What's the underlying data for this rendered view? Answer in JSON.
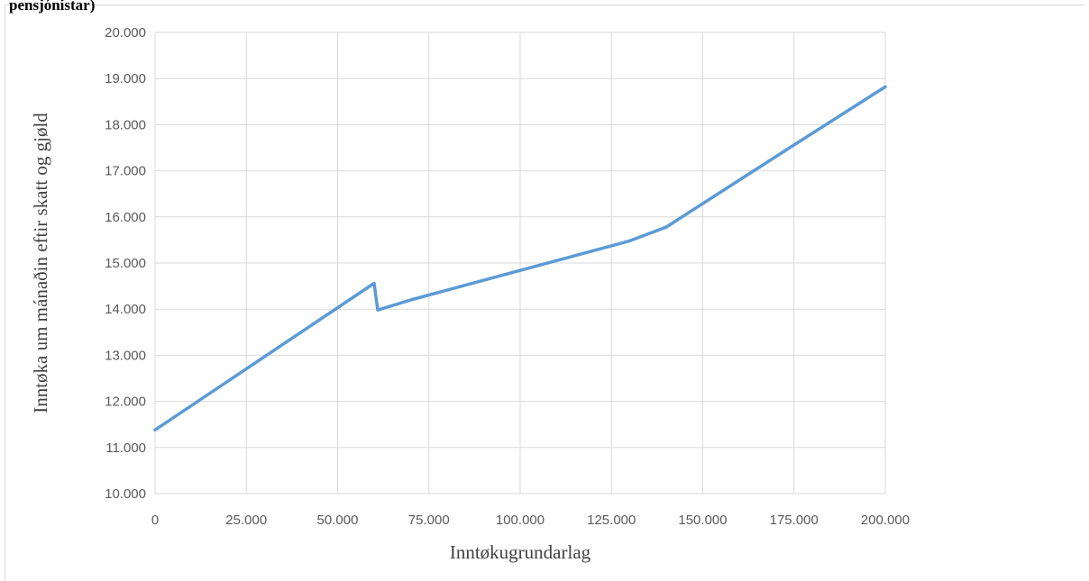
{
  "header": {
    "cut_title": "pensjónistar)"
  },
  "chart_data": {
    "type": "line",
    "title": "",
    "xlabel": "Inntøkugrundarlag",
    "ylabel": "Inntøka um mánaðin eftir skatt og gjøld",
    "xlim": [
      0,
      200000
    ],
    "ylim": [
      10000,
      20000
    ],
    "grid": true,
    "legend": "none",
    "x_ticks": [
      "0",
      "25.000",
      "50.000",
      "75.000",
      "100.000",
      "125.000",
      "150.000",
      "175.000",
      "200.000"
    ],
    "y_ticks": [
      "10.000",
      "11.000",
      "12.000",
      "13.000",
      "14.000",
      "15.000",
      "16.000",
      "17.000",
      "18.000",
      "19.000",
      "20.000"
    ],
    "series": [
      {
        "color": "#5b9bd5",
        "x": [
          0,
          60000,
          61000,
          70000,
          100000,
          130000,
          140000,
          175000,
          200000
        ],
        "y": [
          11380,
          14560,
          13980,
          14200,
          14840,
          15480,
          15780,
          17560,
          18820
        ]
      }
    ]
  }
}
